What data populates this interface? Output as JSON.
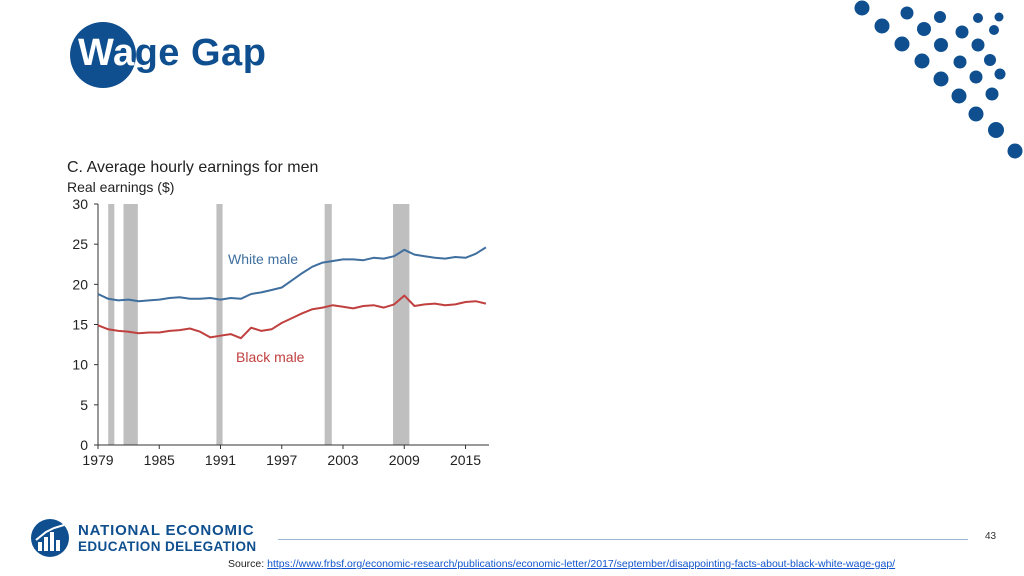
{
  "slide": {
    "title_lead": "Wa",
    "title_rest": "ge Gap",
    "page_number": "43",
    "source_label": "Source:",
    "source_url": "https://www.frbsf.org/economic-research/publications/economic-letter/2017/september/disappointing-facts-about-black-white-wage-gap/"
  },
  "logo": {
    "line1": "NATIONAL ECONOMIC",
    "line2": "EDUCATION DELEGATION"
  },
  "colors": {
    "brand": "#0f4f8f",
    "white_series": "#3f6f9f",
    "black_series": "#c0403f",
    "recession": "#bfbfbf"
  },
  "chart_data": {
    "type": "line",
    "title": "C. Average hourly earnings for men",
    "ylabel": "Real earnings ($)",
    "xlabel": "",
    "xlim": [
      1979,
      2017.3
    ],
    "ylim": [
      0,
      30
    ],
    "x_ticks": [
      1979,
      1985,
      1991,
      1997,
      2003,
      2009,
      2015
    ],
    "y_ticks": [
      0,
      5,
      10,
      15,
      20,
      25,
      30
    ],
    "recessions": [
      [
        1980.0,
        1980.6
      ],
      [
        1981.5,
        1982.9
      ],
      [
        1990.6,
        1991.2
      ],
      [
        2001.2,
        2001.9
      ],
      [
        2007.9,
        2009.5
      ]
    ],
    "series": [
      {
        "name": "White male",
        "x": [
          1979,
          1980,
          1981,
          1982,
          1983,
          1984,
          1985,
          1986,
          1987,
          1988,
          1989,
          1990,
          1991,
          1992,
          1993,
          1994,
          1995,
          1996,
          1997,
          1998,
          1999,
          2000,
          2001,
          2002,
          2003,
          2004,
          2005,
          2006,
          2007,
          2008,
          2009,
          2010,
          2011,
          2012,
          2013,
          2014,
          2015,
          2016,
          2017
        ],
        "values": [
          18.8,
          18.2,
          18.0,
          18.1,
          17.9,
          18.0,
          18.1,
          18.3,
          18.4,
          18.2,
          18.2,
          18.3,
          18.1,
          18.3,
          18.2,
          18.8,
          19.0,
          19.3,
          19.6,
          20.5,
          21.4,
          22.2,
          22.7,
          22.9,
          23.1,
          23.1,
          23.0,
          23.3,
          23.2,
          23.5,
          24.3,
          23.7,
          23.5,
          23.3,
          23.2,
          23.4,
          23.3,
          23.8,
          24.6
        ]
      },
      {
        "name": "Black male",
        "x": [
          1979,
          1980,
          1981,
          1982,
          1983,
          1984,
          1985,
          1986,
          1987,
          1988,
          1989,
          1990,
          1991,
          1992,
          1993,
          1994,
          1995,
          1996,
          1997,
          1998,
          1999,
          2000,
          2001,
          2002,
          2003,
          2004,
          2005,
          2006,
          2007,
          2008,
          2009,
          2010,
          2011,
          2012,
          2013,
          2014,
          2015,
          2016,
          2017
        ],
        "values": [
          14.9,
          14.4,
          14.2,
          14.1,
          13.9,
          14.0,
          14.0,
          14.2,
          14.3,
          14.5,
          14.1,
          13.4,
          13.6,
          13.8,
          13.3,
          14.6,
          14.2,
          14.4,
          15.2,
          15.8,
          16.4,
          16.9,
          17.1,
          17.4,
          17.2,
          17.0,
          17.3,
          17.4,
          17.1,
          17.5,
          18.6,
          17.3,
          17.5,
          17.6,
          17.4,
          17.5,
          17.8,
          17.9,
          17.6
        ]
      }
    ]
  }
}
